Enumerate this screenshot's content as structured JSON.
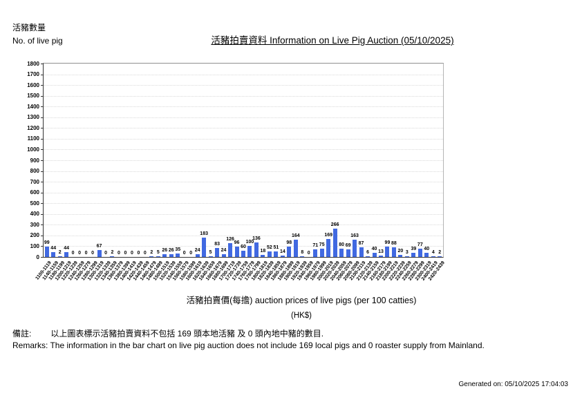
{
  "header": {
    "unit_label_zh": "活豬數量",
    "unit_label_en": "No. of live pig"
  },
  "chart_data": {
    "type": "bar",
    "title": "活豬拍賣資料 Information on Live Pig Auction (05/10/2025)",
    "ylabel_zh": "活豬數量",
    "ylabel_en": "No. of live pig",
    "xlabel": "活豬拍賣價(每擔) auction prices of live pigs (per 100 catties)",
    "xlabel_unit": "(HK$)",
    "ylim": [
      0,
      1800
    ],
    "ytick_step": 100,
    "grid": true,
    "legend": "none",
    "bar_color": "#4169e1",
    "categories": [
      "1100-1119",
      "1140-1159",
      "1180-1199",
      "1200-1219",
      "1220-1239",
      "1240-1259",
      "1260-1279",
      "1280-1299",
      "1300-1319",
      "1320-1339",
      "1340-1359",
      "1360-1379",
      "1380-1399",
      "1400-1419",
      "1420-1439",
      "1440-1459",
      "1460-1479",
      "1480-1499",
      "1500-1519",
      "1520-1539",
      "1540-1559",
      "1560-1579",
      "1580-1599",
      "1600-1619",
      "1620-1639",
      "1640-1659",
      "1660-1679",
      "1680-1699",
      "1700-1719",
      "1720-1739",
      "1740-1759",
      "1760-1779",
      "1780-1799",
      "1800-1819",
      "1820-1839",
      "1840-1859",
      "1860-1879",
      "1880-1899",
      "1900-1919",
      "1920-1939",
      "1940-1959",
      "1960-1979",
      "1980-1999",
      "2000-2019",
      "2020-2039",
      "2040-2059",
      "2060-2079",
      "2080-2099",
      "2100-2119",
      "2120-2139",
      "2140-2159",
      "2160-2179",
      "2180-2199",
      "2200-2219",
      "2220-2239",
      "2240-2259",
      "2260-2279",
      "2280-2299",
      "2300-2319",
      "2400-2419",
      "2420-2439"
    ],
    "values": [
      99,
      44,
      2,
      44,
      0,
      0,
      0,
      0,
      67,
      0,
      2,
      0,
      0,
      0,
      0,
      0,
      2,
      5,
      26,
      26,
      35,
      0,
      0,
      24,
      183,
      5,
      83,
      24,
      126,
      96,
      60,
      100,
      136,
      18,
      52,
      51,
      14,
      98,
      164,
      8,
      0,
      71,
      75,
      169,
      266,
      80,
      69,
      163,
      87,
      6,
      40,
      13,
      99,
      88,
      20,
      3,
      39,
      77,
      40,
      4,
      2
    ]
  },
  "remarks": {
    "zh_label": "備註:",
    "zh_text": "以上圖表標示活豬拍賣資料不包括 169 頭本地活豬 及 0 頭內地中豬的數目.",
    "en": "Remarks: The information in the bar chart on live pig auction does not include 169 local pigs and 0 roaster supply from Mainland."
  },
  "footer": {
    "generated_on": "Generated on: 05/10/2025 17:04:03"
  }
}
